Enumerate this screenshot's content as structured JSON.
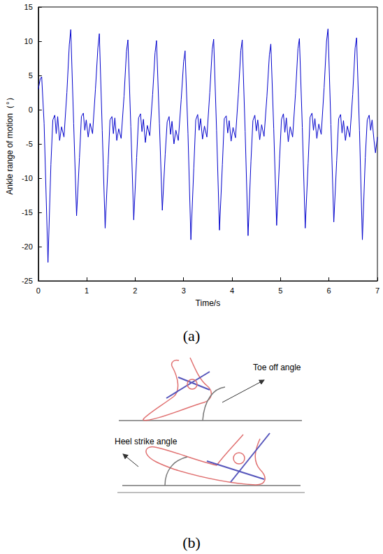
{
  "chart_data": {
    "type": "line",
    "title": "(a)",
    "x_label": "Time/s",
    "y_label": "Ankle range of motion（°）",
    "color": "#0000cc",
    "grid": false,
    "xlim": [
      0,
      7
    ],
    "xticks": [
      0,
      1,
      2,
      3,
      4,
      5,
      6,
      7
    ],
    "ylim": [
      -25,
      15
    ],
    "yticks": [
      -25,
      -20,
      -15,
      -10,
      -5,
      0,
      5,
      10,
      15
    ],
    "x": [
      0,
      0.04,
      0.07,
      0.12,
      0.2,
      0.26,
      0.3,
      0.34,
      0.37,
      0.4,
      0.44,
      0.48,
      0.53,
      0.59,
      0.64,
      0.67,
      0.73,
      0.79,
      0.85,
      0.89,
      0.93,
      0.96,
      0.99,
      1.03,
      1.07,
      1.12,
      1.18,
      1.23,
      1.26,
      1.32,
      1.38,
      1.44,
      1.48,
      1.52,
      1.55,
      1.58,
      1.62,
      1.66,
      1.71,
      1.77,
      1.82,
      1.85,
      1.91,
      1.97,
      2.03,
      2.07,
      2.11,
      2.14,
      2.17,
      2.21,
      2.25,
      2.3,
      2.36,
      2.41,
      2.44,
      2.5,
      2.56,
      2.62,
      2.66,
      2.7,
      2.73,
      2.76,
      2.8,
      2.84,
      2.89,
      2.95,
      3.0,
      3.03,
      3.09,
      3.15,
      3.21,
      3.25,
      3.29,
      3.32,
      3.35,
      3.39,
      3.43,
      3.48,
      3.54,
      3.59,
      3.62,
      3.68,
      3.74,
      3.8,
      3.84,
      3.88,
      3.91,
      3.94,
      3.98,
      4.02,
      4.07,
      4.13,
      4.18,
      4.21,
      4.27,
      4.33,
      4.39,
      4.43,
      4.47,
      4.5,
      4.53,
      4.57,
      4.61,
      4.66,
      4.72,
      4.77,
      4.8,
      4.86,
      4.92,
      4.98,
      5.02,
      5.06,
      5.09,
      5.12,
      5.16,
      5.2,
      5.25,
      5.31,
      5.36,
      5.39,
      5.45,
      5.51,
      5.57,
      5.61,
      5.65,
      5.68,
      5.71,
      5.75,
      5.79,
      5.84,
      5.9,
      5.95,
      5.98,
      6.04,
      6.1,
      6.16,
      6.2,
      6.24,
      6.27,
      6.3,
      6.34,
      6.38,
      6.43,
      6.49,
      6.54,
      6.57,
      6.63,
      6.69,
      6.75,
      6.79,
      6.83,
      6.86,
      6.89,
      6.93,
      6.96,
      7.0
    ],
    "values": [
      3,
      4.5,
      4.8,
      -2,
      -22.3,
      -8,
      -1.5,
      -0.8,
      -3.5,
      -1,
      -4.5,
      -2.5,
      -4,
      2.5,
      9.5,
      11.7,
      -2,
      -15.5,
      -7,
      -1,
      -0.5,
      -3,
      -1.5,
      -4,
      -2,
      -3.5,
      3,
      9,
      11.1,
      -3,
      -17.3,
      -8,
      -1.5,
      -1,
      -3.5,
      -1.2,
      -4.5,
      -2.8,
      -4.2,
      2,
      8.5,
      10.2,
      -2.5,
      -16.1,
      -7,
      -1.2,
      -0.6,
      -3.2,
      -1.4,
      -4.8,
      -2.3,
      -3.8,
      2.2,
      8.3,
      10.1,
      -2,
      -14.7,
      -6.5,
      -1.8,
      -1,
      -3.6,
      -1.7,
      -5,
      -3,
      -4.5,
      1.5,
      7,
      8.6,
      -3.5,
      -19,
      -8.5,
      -1.5,
      -0.7,
      -3,
      -1.3,
      -4.3,
      -2.4,
      -4,
      2.5,
      8.8,
      10.3,
      -3,
      -17.6,
      -8,
      -1.3,
      -0.9,
      -3.4,
      -1.6,
      -4.6,
      -2.6,
      -4.1,
      2.3,
      8.6,
      10.2,
      -3.2,
      -18.4,
      -7.5,
      -1.6,
      -0.8,
      -3.1,
      -1.5,
      -4.4,
      -2.2,
      -3.9,
      2,
      8,
      9.6,
      -2.8,
      -16.9,
      -7.2,
      -1.4,
      -0.6,
      -3.3,
      -1.2,
      -4.7,
      -2.5,
      -4,
      2.4,
      8.9,
      10.4,
      -2.6,
      -17.3,
      -7.8,
      -1.1,
      -0.5,
      -3,
      -1.3,
      -4.2,
      -2.1,
      -3.6,
      3.2,
      10,
      11.8,
      -2.2,
      -16.4,
      -7.4,
      -1.3,
      -0.7,
      -3.4,
      -1.6,
      -4.5,
      -2.4,
      -4,
      2.2,
      9,
      10.5,
      -3,
      -19,
      -7,
      -1.5,
      -0.8,
      -3,
      -1.5,
      -4.5,
      -6.3,
      -4
    ]
  },
  "diagram": {
    "label": "(b)",
    "toe_off": {
      "label": "Toe off angle"
    },
    "heel_strike": {
      "label": "Heel strike angle"
    }
  }
}
